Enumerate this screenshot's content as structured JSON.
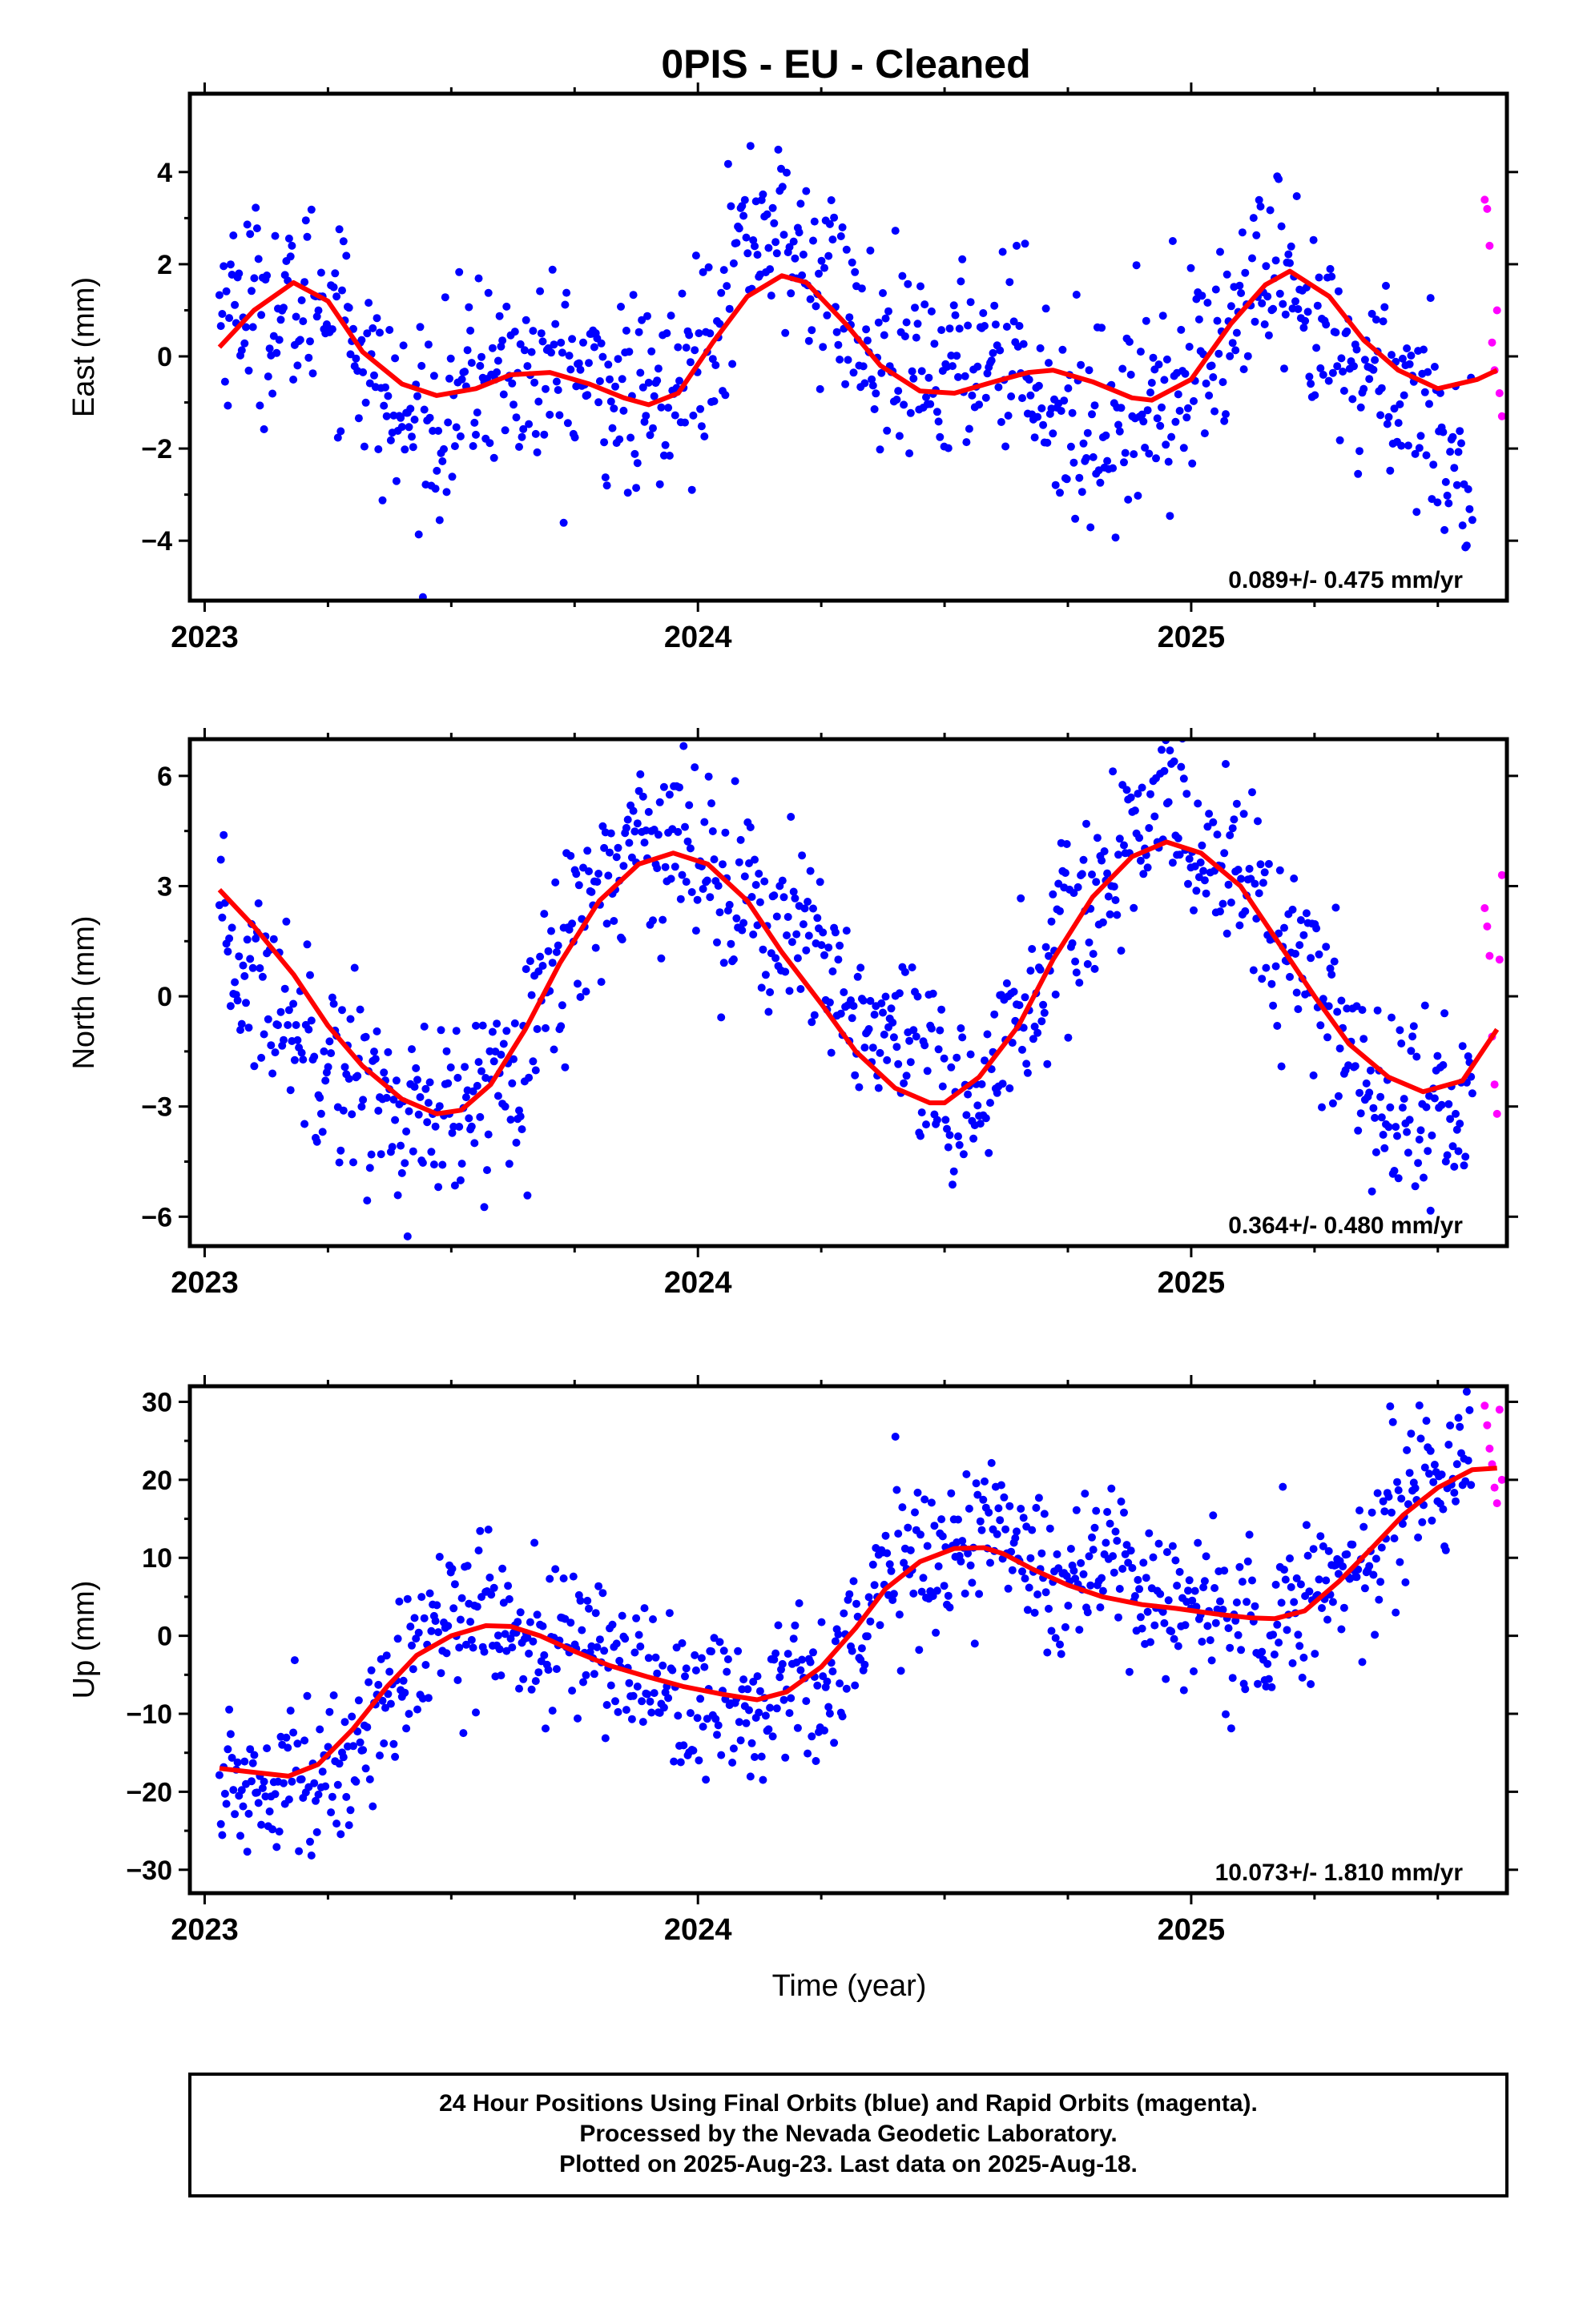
{
  "title": "0PIS  - EU - Cleaned",
  "xlabel": "Time (year)",
  "colors": {
    "final": "#0000ff",
    "rapid": "#ff00ff",
    "fit": "#ff0000"
  },
  "caption": [
    "24 Hour Positions Using Final Orbits (blue) and Rapid Orbits (magenta).",
    "Processed by the Nevada Geodetic Laboratory.",
    "Plotted on 2025-Aug-23. Last data on 2025-Aug-18."
  ],
  "chart_data": [
    {
      "type": "scatter",
      "ylabel": "East (mm)",
      "rate": "0.089+/- 0.475 mm/yr",
      "xlim": [
        2022.97,
        2025.64
      ],
      "ylim": [
        -5.3,
        5.7
      ],
      "yticks": [
        -4,
        -2,
        0,
        2,
        4
      ],
      "ytick_labels": [
        "−4",
        "−2",
        "0",
        "2",
        "4"
      ],
      "xticks": [
        2023,
        2024,
        2025
      ],
      "fit": {
        "x": [
          2023.03,
          2023.1,
          2023.18,
          2023.25,
          2023.32,
          2023.4,
          2023.47,
          2023.55,
          2023.62,
          2023.7,
          2023.78,
          2023.85,
          2023.9,
          2023.96,
          2024.03,
          2024.1,
          2024.17,
          2024.22,
          2024.3,
          2024.37,
          2024.45,
          2024.52,
          2024.6,
          2024.67,
          2024.72,
          2024.8,
          2024.88,
          2024.92,
          2025.0,
          2025.08,
          2025.15,
          2025.2,
          2025.28,
          2025.35,
          2025.42,
          2025.5,
          2025.58,
          2025.62
        ],
        "y": [
          0.2,
          1.0,
          1.6,
          1.2,
          0.1,
          -0.6,
          -0.85,
          -0.7,
          -0.4,
          -0.35,
          -0.6,
          -0.9,
          -1.05,
          -0.8,
          0.3,
          1.3,
          1.75,
          1.6,
          0.7,
          -0.2,
          -0.75,
          -0.8,
          -0.55,
          -0.35,
          -0.3,
          -0.55,
          -0.9,
          -0.95,
          -0.5,
          0.7,
          1.55,
          1.85,
          1.3,
          0.35,
          -0.3,
          -0.7,
          -0.5,
          -0.3
        ]
      },
      "final": {
        "spread": 1.05,
        "x": [
          2023.03,
          2023.08,
          2023.13,
          2023.18,
          2023.23,
          2023.28,
          2023.33,
          2023.38,
          2023.43,
          2023.48,
          2023.53,
          2023.58,
          2023.63,
          2023.68,
          2023.73,
          2023.78,
          2023.83,
          2023.88,
          2023.93,
          2023.98,
          2024.03,
          2024.08,
          2024.13,
          2024.18,
          2024.23,
          2024.28,
          2024.33,
          2024.38,
          2024.43,
          2024.48,
          2024.53,
          2024.58,
          2024.63,
          2024.68,
          2024.73,
          2024.78,
          2024.83,
          2024.88,
          2024.93,
          2024.98,
          2025.03,
          2025.08,
          2025.13,
          2025.18,
          2025.23,
          2025.28,
          2025.33,
          2025.38,
          2025.43,
          2025.48,
          2025.53,
          2025.57
        ],
        "y": [
          1.1,
          1.3,
          1.0,
          0.9,
          1.4,
          1.2,
          -0.3,
          -1.3,
          -1.6,
          -1.4,
          -0.7,
          -0.2,
          -0.5,
          -0.4,
          -0.4,
          -0.5,
          -0.7,
          -1.1,
          -1.0,
          -0.4,
          0.8,
          2.3,
          3.0,
          2.4,
          1.8,
          1.5,
          0.4,
          -0.4,
          -0.4,
          -0.4,
          -0.2,
          0.2,
          0.3,
          -0.1,
          -1.3,
          -1.6,
          -1.4,
          -1.3,
          -0.6,
          -0.3,
          -0.1,
          0.6,
          1.6,
          1.6,
          0.4,
          0.3,
          -0.6,
          -0.1,
          -0.8,
          -1.2,
          -1.8,
          -3.4
        ]
      },
      "rapid": {
        "x": [
          2025.595,
          2025.6,
          2025.605,
          2025.61,
          2025.615,
          2025.62,
          2025.625,
          2025.63
        ],
        "y": [
          3.4,
          3.2,
          2.4,
          0.3,
          -0.3,
          1.0,
          -0.8,
          -1.3
        ]
      }
    },
    {
      "type": "scatter",
      "ylabel": "North (mm)",
      "rate": "0.364+/- 0.480 mm/yr",
      "xlim": [
        2022.97,
        2025.64
      ],
      "ylim": [
        -6.8,
        7.0
      ],
      "yticks": [
        -6,
        -3,
        0,
        3,
        6
      ],
      "ytick_labels": [
        "−6",
        "−3",
        "0",
        "3",
        "6"
      ],
      "xticks": [
        2023,
        2024,
        2025
      ],
      "fit": {
        "x": [
          2023.03,
          2023.1,
          2023.18,
          2023.25,
          2023.32,
          2023.4,
          2023.47,
          2023.52,
          2023.58,
          2023.65,
          2023.72,
          2023.8,
          2023.88,
          2023.95,
          2024.02,
          2024.1,
          2024.17,
          2024.25,
          2024.32,
          2024.4,
          2024.47,
          2024.5,
          2024.57,
          2024.65,
          2024.72,
          2024.8,
          2024.88,
          2024.95,
          2025.02,
          2025.1,
          2025.17,
          2025.25,
          2025.32,
          2025.4,
          2025.47,
          2025.55,
          2025.62
        ],
        "y": [
          2.9,
          1.9,
          0.6,
          -0.8,
          -1.9,
          -2.8,
          -3.2,
          -3.1,
          -2.4,
          -0.9,
          0.9,
          2.6,
          3.6,
          3.9,
          3.6,
          2.6,
          1.2,
          -0.2,
          -1.5,
          -2.5,
          -2.9,
          -2.9,
          -2.2,
          -0.8,
          1.0,
          2.7,
          3.8,
          4.2,
          3.9,
          3.0,
          1.6,
          0.0,
          -1.3,
          -2.2,
          -2.6,
          -2.3,
          -0.9
        ]
      },
      "final": {
        "spread": 1.3,
        "x": [
          2023.03,
          2023.08,
          2023.13,
          2023.18,
          2023.23,
          2023.28,
          2023.33,
          2023.38,
          2023.43,
          2023.48,
          2023.53,
          2023.58,
          2023.63,
          2023.68,
          2023.73,
          2023.78,
          2023.83,
          2023.88,
          2023.93,
          2023.98,
          2024.03,
          2024.08,
          2024.13,
          2024.18,
          2024.23,
          2024.28,
          2024.33,
          2024.38,
          2024.43,
          2024.48,
          2024.53,
          2024.58,
          2024.63,
          2024.68,
          2024.73,
          2024.78,
          2024.83,
          2024.88,
          2024.93,
          2024.98,
          2025.03,
          2025.08,
          2025.13,
          2025.18,
          2025.23,
          2025.28,
          2025.33,
          2025.38,
          2025.43,
          2025.48,
          2025.53,
          2025.57
        ],
        "y": [
          1.5,
          0.6,
          0.1,
          -0.6,
          -1.2,
          -1.8,
          -2.4,
          -3.2,
          -3.5,
          -3.6,
          -3.3,
          -2.4,
          -1.4,
          -0.2,
          1.5,
          2.5,
          3.6,
          4.4,
          4.4,
          4.2,
          3.7,
          3.0,
          2.2,
          1.8,
          1.1,
          0.2,
          -0.6,
          -1.2,
          -1.8,
          -2.7,
          -3.4,
          -2.1,
          -0.9,
          0.1,
          1.2,
          2.2,
          3.4,
          4.2,
          4.9,
          4.8,
          4.1,
          3.7,
          2.8,
          1.4,
          0.6,
          -0.6,
          -1.6,
          -2.6,
          -3.1,
          -3.1,
          -3.3,
          -2.4
        ]
      },
      "rapid": {
        "x": [
          2025.595,
          2025.6,
          2025.605,
          2025.61,
          2025.615,
          2025.62,
          2025.625,
          2025.63
        ],
        "y": [
          2.4,
          1.9,
          1.1,
          -1.1,
          -2.4,
          -3.2,
          1.0,
          3.3
        ]
      }
    },
    {
      "type": "scatter",
      "ylabel": "Up (mm)",
      "rate": "10.073+/- 1.810 mm/yr",
      "xlim": [
        2022.97,
        2025.64
      ],
      "ylim": [
        -33,
        32
      ],
      "yticks": [
        -30,
        -20,
        -10,
        0,
        10,
        20,
        30
      ],
      "ytick_labels": [
        "−30",
        "−20",
        "−10",
        "0",
        "10",
        "20",
        "30"
      ],
      "xticks": [
        2023,
        2024,
        2025
      ],
      "fit": {
        "x": [
          2023.03,
          2023.1,
          2023.17,
          2023.23,
          2023.3,
          2023.37,
          2023.43,
          2023.5,
          2023.57,
          2023.62,
          2023.68,
          2023.75,
          2023.82,
          2023.9,
          2023.97,
          2024.05,
          2024.12,
          2024.18,
          2024.25,
          2024.32,
          2024.38,
          2024.45,
          2024.52,
          2024.58,
          2024.62,
          2024.68,
          2024.75,
          2024.82,
          2024.9,
          2024.97,
          2025.05,
          2025.12,
          2025.17,
          2025.23,
          2025.3,
          2025.37,
          2025.43,
          2025.5,
          2025.57,
          2025.62
        ],
        "y": [
          -17.0,
          -17.5,
          -18.0,
          -16.5,
          -12.0,
          -6.5,
          -2.5,
          0.0,
          1.3,
          1.2,
          0.0,
          -2.0,
          -3.8,
          -5.3,
          -6.5,
          -7.5,
          -8.2,
          -7.2,
          -4.0,
          1.0,
          6.0,
          9.5,
          11.2,
          11.3,
          10.5,
          8.5,
          6.5,
          5.0,
          4.0,
          3.5,
          2.8,
          2.3,
          2.2,
          3.2,
          7.0,
          11.5,
          15.5,
          19.0,
          21.3,
          21.5
        ]
      },
      "final": {
        "spread": 5.0,
        "x": [
          2023.03,
          2023.08,
          2023.13,
          2023.18,
          2023.23,
          2023.28,
          2023.33,
          2023.38,
          2023.43,
          2023.48,
          2023.53,
          2023.58,
          2023.63,
          2023.68,
          2023.73,
          2023.78,
          2023.83,
          2023.88,
          2023.93,
          2023.98,
          2024.03,
          2024.08,
          2024.13,
          2024.18,
          2024.23,
          2024.28,
          2024.33,
          2024.38,
          2024.43,
          2024.48,
          2024.53,
          2024.58,
          2024.63,
          2024.68,
          2024.73,
          2024.78,
          2024.83,
          2024.88,
          2024.93,
          2024.98,
          2025.03,
          2025.08,
          2025.13,
          2025.18,
          2025.23,
          2025.28,
          2025.33,
          2025.38,
          2025.43,
          2025.48,
          2025.53,
          2025.57
        ],
        "y": [
          -19.0,
          -19.5,
          -18.0,
          -14.0,
          -20.0,
          -18.0,
          -11.0,
          -7.0,
          -3.0,
          1.0,
          4.0,
          3.0,
          0.0,
          -1.0,
          -2.0,
          1.0,
          -4.0,
          -5.0,
          -5.0,
          -9.0,
          -8.0,
          -9.0,
          -10.0,
          -6.0,
          -5.0,
          -4.0,
          1.0,
          7.0,
          10.0,
          11.0,
          10.0,
          14.0,
          14.0,
          10.0,
          7.0,
          8.0,
          11.0,
          6.0,
          5.0,
          4.0,
          4.0,
          0.0,
          1.0,
          3.0,
          5.0,
          6.0,
          9.0,
          13.0,
          17.0,
          20.0,
          22.0,
          26.0
        ]
      },
      "rapid": {
        "x": [
          2025.595,
          2025.6,
          2025.605,
          2025.61,
          2025.615,
          2025.62,
          2025.625,
          2025.63
        ],
        "y": [
          29.5,
          27.0,
          24.0,
          22.0,
          19.0,
          17.0,
          29.0,
          20.0
        ]
      }
    }
  ]
}
